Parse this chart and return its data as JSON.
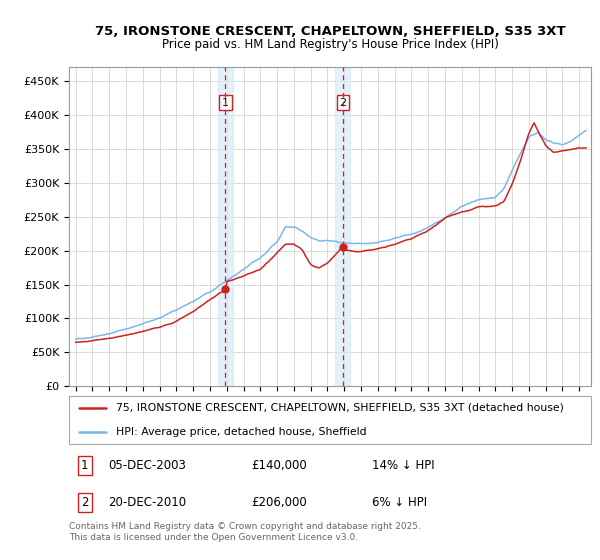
{
  "title1": "75, IRONSTONE CRESCENT, CHAPELTOWN, SHEFFIELD, S35 3XT",
  "title2": "Price paid vs. HM Land Registry's House Price Index (HPI)",
  "ylabel_ticks": [
    "£0",
    "£50K",
    "£100K",
    "£150K",
    "£200K",
    "£250K",
    "£300K",
    "£350K",
    "£400K",
    "£450K"
  ],
  "ytick_values": [
    0,
    50000,
    100000,
    150000,
    200000,
    250000,
    300000,
    350000,
    400000,
    450000
  ],
  "ylim": [
    0,
    470000
  ],
  "legend_red": "75, IRONSTONE CRESCENT, CHAPELTOWN, SHEFFIELD, S35 3XT (detached house)",
  "legend_blue": "HPI: Average price, detached house, Sheffield",
  "transaction1_date": "05-DEC-2003",
  "transaction1_price": "£140,000",
  "transaction1_hpi": "14% ↓ HPI",
  "transaction2_date": "20-DEC-2010",
  "transaction2_price": "£206,000",
  "transaction2_hpi": "6% ↓ HPI",
  "footer": "Contains HM Land Registry data © Crown copyright and database right 2025.\nThis data is licensed under the Open Government Licence v3.0.",
  "transaction1_x": 2003.92,
  "transaction2_x": 2010.92,
  "color_red": "#cc2222",
  "color_blue": "#7ab8e8",
  "color_band": "#daeaf7",
  "plot_bg": "#ffffff"
}
